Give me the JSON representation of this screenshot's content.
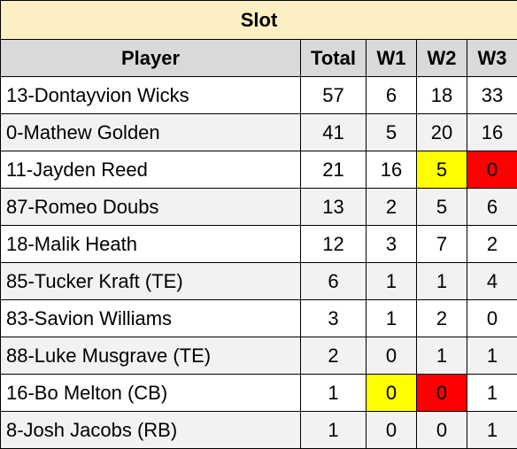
{
  "title": "Slot",
  "columns": [
    "Player",
    "Total",
    "W1",
    "W2",
    "W3"
  ],
  "colors": {
    "title_bg": "#fcefc3",
    "header_bg": "#d9d9d9",
    "alt_row_bg": "#f2f2f2",
    "highlight_yellow": "#ffff00",
    "highlight_red": "#ff0000"
  },
  "rows": [
    {
      "player": "13-Dontayvion Wicks",
      "total": "57",
      "w1": "6",
      "w2": "18",
      "w3": "33"
    },
    {
      "player": "0-Mathew Golden",
      "total": "41",
      "w1": "5",
      "w2": "20",
      "w3": "16"
    },
    {
      "player": "11-Jayden Reed",
      "total": "21",
      "w1": "16",
      "w2": "5",
      "w3": "0"
    },
    {
      "player": "87-Romeo Doubs",
      "total": "13",
      "w1": "2",
      "w2": "5",
      "w3": "6"
    },
    {
      "player": "18-Malik Heath",
      "total": "12",
      "w1": "3",
      "w2": "7",
      "w3": "2"
    },
    {
      "player": "85-Tucker Kraft (TE)",
      "total": "6",
      "w1": "1",
      "w2": "1",
      "w3": "4"
    },
    {
      "player": "83-Savion Williams",
      "total": "3",
      "w1": "1",
      "w2": "2",
      "w3": "0"
    },
    {
      "player": "88-Luke Musgrave (TE)",
      "total": "2",
      "w1": "0",
      "w2": "1",
      "w3": "1"
    },
    {
      "player": "16-Bo Melton (CB)",
      "total": "1",
      "w1": "0",
      "w2": "0",
      "w3": "1"
    },
    {
      "player": "8-Josh Jacobs (RB)",
      "total": "1",
      "w1": "0",
      "w2": "0",
      "w3": "1"
    }
  ]
}
